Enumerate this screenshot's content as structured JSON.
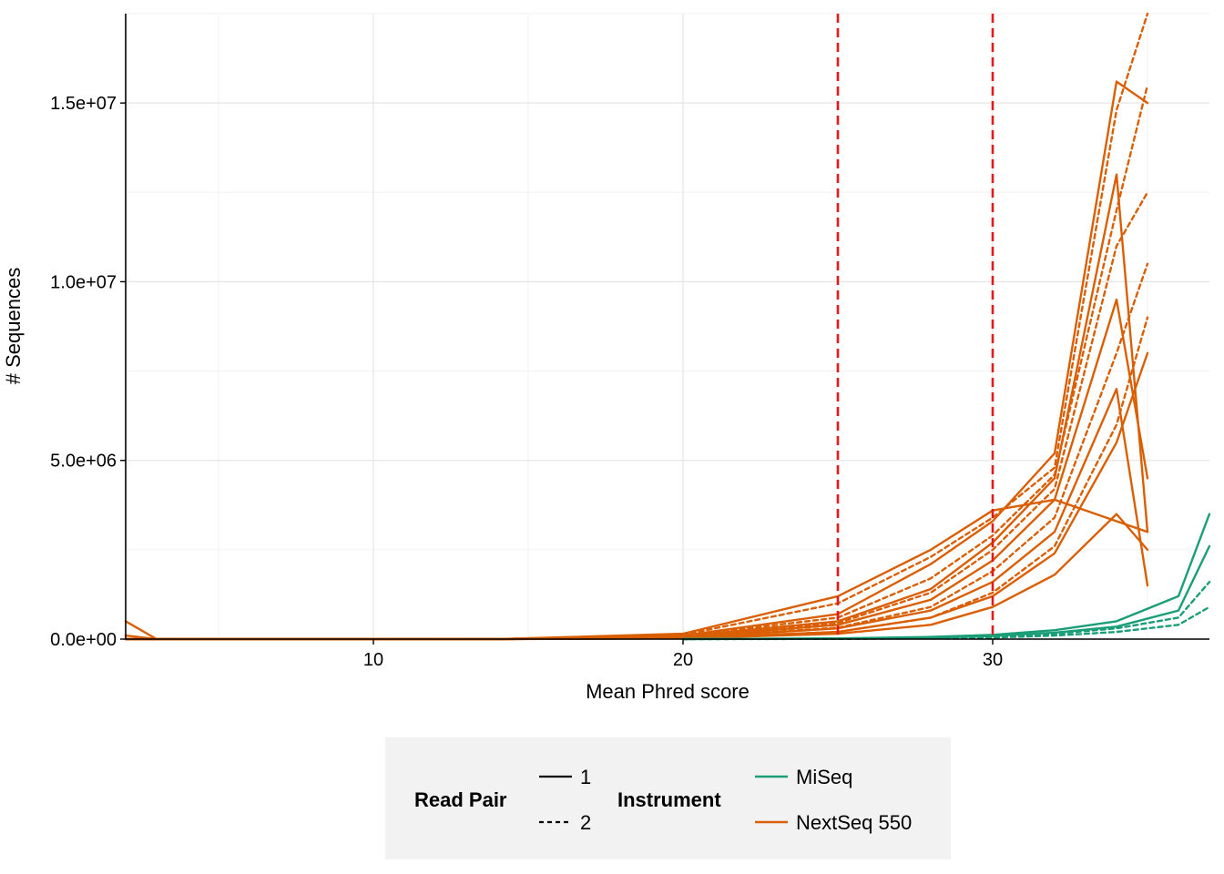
{
  "chart_data": {
    "type": "line",
    "title": "",
    "xlabel": "Mean Phred score",
    "ylabel": "# Sequences",
    "xlim": [
      2,
      37
    ],
    "ylim": [
      0,
      17500000
    ],
    "x_ticks": [
      10,
      20,
      30
    ],
    "x_tick_labels": [
      "10",
      "20",
      "30"
    ],
    "y_ticks": [
      0,
      5000000,
      10000000,
      15000000
    ],
    "y_tick_labels": [
      "0.0e+00",
      "5.0e+06",
      "1.0e+07",
      "1.5e+07"
    ],
    "grid": true,
    "reference_lines": [
      {
        "x": 25,
        "color": "#e31a1c",
        "style": "dashed"
      },
      {
        "x": 30,
        "color": "#e31a1c",
        "style": "dashed"
      }
    ],
    "legend_placement": "bottom",
    "legend": {
      "read_pair": {
        "title": "Read Pair",
        "entries": [
          {
            "label": "1",
            "linetype": "solid"
          },
          {
            "label": "2",
            "linetype": "dashed"
          }
        ]
      },
      "instrument": {
        "title": "Instrument",
        "entries": [
          {
            "label": "MiSeq",
            "color": "#1b9e77"
          },
          {
            "label": "NextSeq 550",
            "color": "#d95f02"
          }
        ]
      }
    },
    "series": [
      {
        "instrument": "NextSeq 550",
        "read_pair": "1",
        "x": [
          2,
          3,
          14,
          20,
          25,
          28,
          30,
          32,
          34,
          35
        ],
        "y": [
          500000,
          0,
          0,
          150000,
          1200000,
          2500000,
          3600000,
          3900000,
          3300000,
          3000000
        ]
      },
      {
        "instrument": "NextSeq 550",
        "read_pair": "1",
        "x": [
          2,
          3,
          14,
          20,
          25,
          28,
          30,
          32,
          34,
          35
        ],
        "y": [
          100000,
          0,
          0,
          100000,
          700000,
          2100000,
          3300000,
          5200000,
          15600000,
          15000000
        ]
      },
      {
        "instrument": "NextSeq 550",
        "read_pair": "1",
        "x": [
          2,
          3,
          14,
          20,
          25,
          28,
          30,
          32,
          34,
          35
        ],
        "y": [
          0,
          0,
          0,
          80000,
          500000,
          1400000,
          2700000,
          4500000,
          13000000,
          3000000
        ]
      },
      {
        "instrument": "NextSeq 550",
        "read_pair": "1",
        "x": [
          2,
          3,
          14,
          20,
          25,
          28,
          30,
          32,
          34,
          35
        ],
        "y": [
          0,
          0,
          0,
          60000,
          400000,
          1100000,
          2200000,
          3900000,
          9500000,
          4500000
        ]
      },
      {
        "instrument": "NextSeq 550",
        "read_pair": "1",
        "x": [
          2,
          3,
          14,
          20,
          25,
          28,
          30,
          32,
          34,
          35
        ],
        "y": [
          0,
          0,
          0,
          40000,
          300000,
          800000,
          1600000,
          3000000,
          7000000,
          1500000
        ]
      },
      {
        "instrument": "NextSeq 550",
        "read_pair": "1",
        "x": [
          2,
          3,
          14,
          20,
          25,
          28,
          30,
          32,
          34,
          35
        ],
        "y": [
          0,
          0,
          0,
          30000,
          200000,
          600000,
          1200000,
          2400000,
          5500000,
          8000000
        ]
      },
      {
        "instrument": "NextSeq 550",
        "read_pair": "1",
        "x": [
          2,
          3,
          14,
          20,
          25,
          28,
          30,
          32,
          34,
          35
        ],
        "y": [
          0,
          0,
          0,
          20000,
          150000,
          400000,
          900000,
          1800000,
          3500000,
          2500000
        ]
      },
      {
        "instrument": "NextSeq 550",
        "read_pair": "2",
        "x": [
          2,
          3,
          14,
          20,
          25,
          28,
          30,
          32,
          34,
          35
        ],
        "y": [
          0,
          0,
          0,
          120000,
          1000000,
          2300000,
          3400000,
          4800000,
          14800000,
          17500000
        ]
      },
      {
        "instrument": "NextSeq 550",
        "read_pair": "2",
        "x": [
          2,
          3,
          14,
          20,
          25,
          28,
          30,
          32,
          34,
          35
        ],
        "y": [
          0,
          0,
          0,
          90000,
          600000,
          1700000,
          2900000,
          4600000,
          12000000,
          15500000
        ]
      },
      {
        "instrument": "NextSeq 550",
        "read_pair": "2",
        "x": [
          2,
          3,
          14,
          20,
          25,
          28,
          30,
          32,
          34,
          35
        ],
        "y": [
          0,
          0,
          0,
          60000,
          450000,
          1300000,
          2500000,
          4200000,
          11000000,
          12500000
        ]
      },
      {
        "instrument": "NextSeq 550",
        "read_pair": "2",
        "x": [
          2,
          3,
          14,
          20,
          25,
          28,
          30,
          32,
          34,
          35
        ],
        "y": [
          0,
          0,
          0,
          40000,
          320000,
          900000,
          1900000,
          3400000,
          8000000,
          10500000
        ]
      },
      {
        "instrument": "NextSeq 550",
        "read_pair": "2",
        "x": [
          2,
          3,
          14,
          20,
          25,
          28,
          30,
          32,
          34,
          35
        ],
        "y": [
          0,
          0,
          0,
          25000,
          200000,
          600000,
          1300000,
          2600000,
          6000000,
          9000000
        ]
      },
      {
        "instrument": "MiSeq",
        "read_pair": "1",
        "x": [
          20,
          25,
          28,
          30,
          32,
          34,
          36,
          37
        ],
        "y": [
          0,
          20000,
          60000,
          120000,
          250000,
          500000,
          1200000,
          3500000
        ]
      },
      {
        "instrument": "MiSeq",
        "read_pair": "1",
        "x": [
          20,
          25,
          28,
          30,
          32,
          34,
          36,
          37
        ],
        "y": [
          0,
          15000,
          40000,
          90000,
          180000,
          350000,
          800000,
          2600000
        ]
      },
      {
        "instrument": "MiSeq",
        "read_pair": "2",
        "x": [
          20,
          25,
          28,
          30,
          32,
          34,
          36,
          37
        ],
        "y": [
          0,
          10000,
          30000,
          70000,
          150000,
          300000,
          600000,
          1600000
        ]
      },
      {
        "instrument": "MiSeq",
        "read_pair": "2",
        "x": [
          20,
          25,
          28,
          30,
          32,
          34,
          36,
          37
        ],
        "y": [
          0,
          5000,
          20000,
          40000,
          100000,
          200000,
          400000,
          900000
        ]
      }
    ]
  }
}
